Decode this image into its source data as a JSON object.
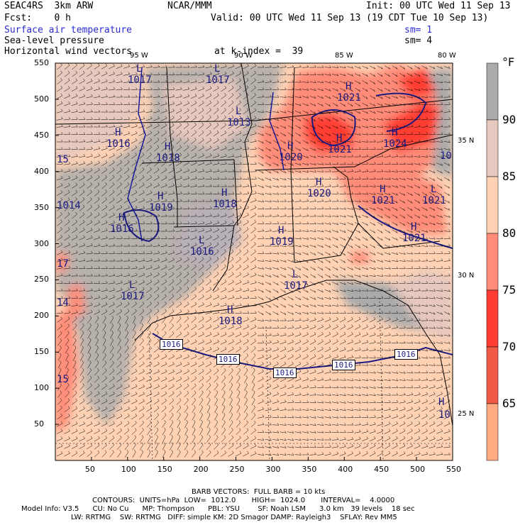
{
  "header": {
    "model": "SEAC4RS  3km ARW",
    "org": "NCAR/MMM",
    "init": "Init: 00 UTC Wed 11 Sep 13",
    "fcst": "Fcst:    0 h",
    "valid": "Valid: 00 UTC Wed 11 Sep 13 (19 CDT Tue 10 Sep 13)",
    "field1": "Surface air temperature",
    "field2": "Sea-level pressure",
    "field3": "Horizontal wind vectors",
    "level": "at k-index =  39",
    "sm1": "sm= 1",
    "sm2": "sm= 4"
  },
  "axes": {
    "x_ticks": [
      "50",
      "100",
      "150",
      "200",
      "250",
      "300",
      "350",
      "400",
      "450",
      "500",
      "550"
    ],
    "y_ticks": [
      "550",
      "500",
      "450",
      "400",
      "350",
      "300",
      "250",
      "200",
      "150",
      "100",
      "50"
    ],
    "lon_labels": [
      "95 W",
      "90 W",
      "85 W",
      "80 W"
    ],
    "lat_labels": [
      "35 N",
      "30 N",
      "25 N"
    ]
  },
  "colorbar": {
    "unit": "°F",
    "labels": [
      "90",
      "85",
      "80",
      "75",
      "70",
      "65"
    ],
    "colors": [
      "#aaaaaa",
      "#e6c8be",
      "#ffd2b4",
      "#ff8c78",
      "#ff3c32",
      "#f05a46",
      "#ffaa80"
    ]
  },
  "pressure_labels": [
    {
      "t": "H",
      "v": "1021"
    },
    {
      "t": "H",
      "v": "1024"
    },
    {
      "t": "H",
      "v": "1021"
    },
    {
      "t": "H",
      "v": "1020"
    },
    {
      "t": "H",
      "v": "1020"
    },
    {
      "t": "H",
      "v": "1021"
    },
    {
      "t": "L",
      "v": "1021"
    },
    {
      "t": "H",
      "v": "1021"
    },
    {
      "t": "H",
      "v": "1018"
    },
    {
      "t": "H",
      "v": "1018"
    },
    {
      "t": "H",
      "v": "1019"
    },
    {
      "t": "H",
      "v": "1019"
    },
    {
      "t": "L",
      "v": "1017"
    },
    {
      "t": "L",
      "v": "1016"
    },
    {
      "t": "H",
      "v": "1016"
    },
    {
      "t": "H",
      "v": "1016"
    },
    {
      "t": "L",
      "v": "1017"
    },
    {
      "t": "L",
      "v": "1013"
    },
    {
      "t": "L",
      "v": "1017"
    },
    {
      "t": "L",
      "v": "1017"
    },
    {
      "t": "H",
      "v": "1018"
    }
  ],
  "edge_labels": [
    "15",
    "1014",
    "17",
    "14",
    "15",
    "10",
    "H",
    "10"
  ],
  "isobar_boxes": [
    "1016",
    "1016",
    "1016",
    "1016",
    "1016"
  ],
  "footer": {
    "barb": "BARB VECTORS:  FULL BARB = 10 kts",
    "contours": "CONTOURS:  UNITS=hPa  LOW=  1012.0       HIGH=  1024.0       INTERVAL=    4.0000",
    "info1": "Model Info: V3.5      CU: No Cu      MP: Thompson      PBL: YSU        SF: Noah LSM      3.0 km   39 levels    18 sec",
    "info2": "LW: RRTMG    SW: RRTMG   DIFF: simple KM: 2D Smagor DAMP: Rayleigh3    SFLAY: Rev MM5"
  }
}
